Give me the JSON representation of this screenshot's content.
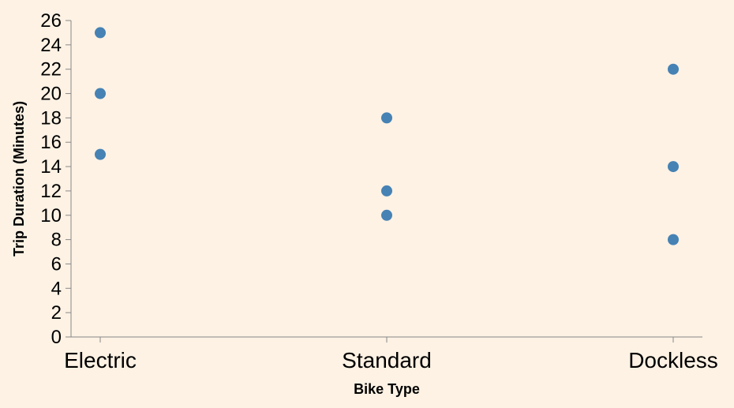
{
  "chart_data": {
    "type": "scatter",
    "xlabel": "Bike Type",
    "ylabel": "Trip Duration (Minutes)",
    "categories": [
      "Electric",
      "Standard",
      "Dockless"
    ],
    "ylim": [
      0,
      26
    ],
    "yticks": [
      0,
      2,
      4,
      6,
      8,
      10,
      12,
      14,
      16,
      18,
      20,
      22,
      24,
      26
    ],
    "points": [
      {
        "category": "Electric",
        "y": 15
      },
      {
        "category": "Electric",
        "y": 20
      },
      {
        "category": "Electric",
        "y": 25
      },
      {
        "category": "Standard",
        "y": 10
      },
      {
        "category": "Standard",
        "y": 12
      },
      {
        "category": "Standard",
        "y": 18
      },
      {
        "category": "Dockless",
        "y": 8
      },
      {
        "category": "Dockless",
        "y": 14
      },
      {
        "category": "Dockless",
        "y": 22
      }
    ],
    "grid": false,
    "colors": {
      "background": "#fdf2e4",
      "point": "#4682b4",
      "axis": "#888888"
    }
  }
}
